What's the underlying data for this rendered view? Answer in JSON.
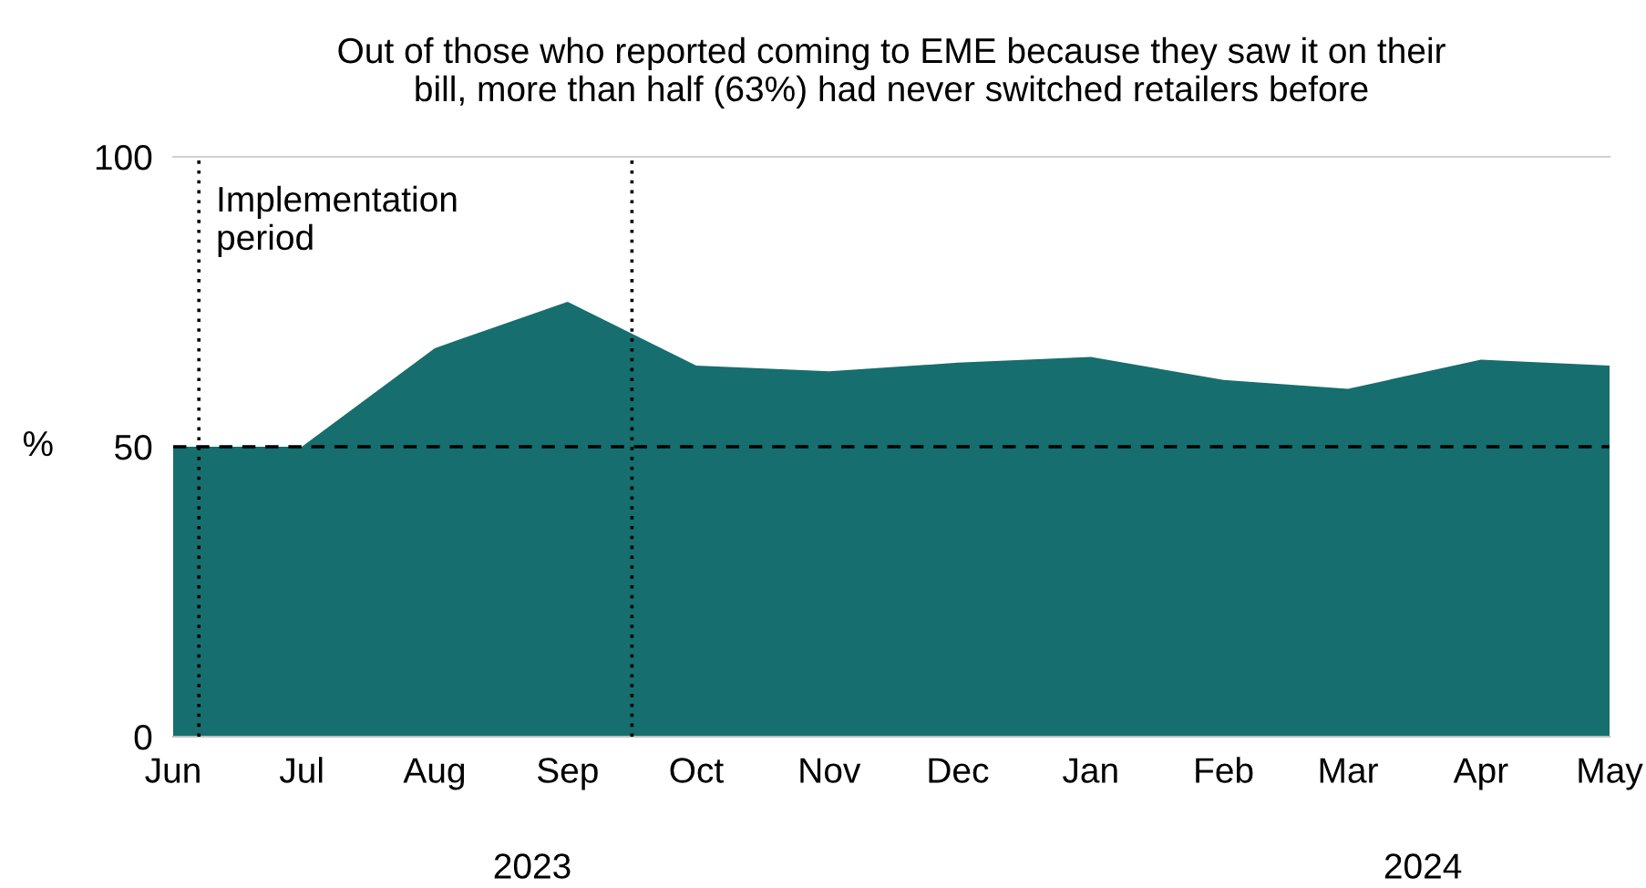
{
  "chart_data": {
    "type": "area",
    "title": "Out of those who reported coming to EME because they saw it on their\nbill, more than half (63%) had never switched retailers before",
    "ylabel": "%",
    "x": [
      "2023-06",
      "2023-07",
      "2023-08",
      "2023-09",
      "2023-10",
      "2023-11",
      "2023-12",
      "2024-01",
      "2024-02",
      "2024-03",
      "2024-04",
      "2024-05"
    ],
    "series": [
      {
        "color": "#176e6e",
        "values": [
          50,
          50,
          67,
          75,
          64,
          63,
          64.5,
          65.5,
          61.5,
          60,
          65,
          64
        ]
      }
    ],
    "xlim": [
      "2023-06",
      "2024-05"
    ],
    "xticks": [
      {
        "value": "2023-06",
        "label": "Jun"
      },
      {
        "value": "2023-07",
        "label": "Jul"
      },
      {
        "value": "2023-08",
        "label": "Aug"
      },
      {
        "value": "2023-09",
        "label": "Sep"
      },
      {
        "value": "2023-10",
        "label": "Oct"
      },
      {
        "value": "2023-11",
        "label": "Nov"
      },
      {
        "value": "2023-12",
        "label": "Dec"
      },
      {
        "value": "2024-01",
        "label": "Jan"
      },
      {
        "value": "2024-02",
        "label": "Feb"
      },
      {
        "value": "2024-03",
        "label": "Mar"
      },
      {
        "value": "2024-04",
        "label": "Apr"
      },
      {
        "value": "2024-05",
        "label": "May"
      }
    ],
    "ylim": [
      0,
      100
    ],
    "yticks": [
      0,
      50,
      100
    ],
    "grid": false,
    "ref_lines": [
      {
        "axis": "y",
        "value": 50,
        "color": "#000000",
        "line_style": "dashed"
      },
      {
        "axis": "x",
        "value": "2023-06-07",
        "color": "#000000",
        "line_style": "dotted"
      },
      {
        "axis": "x",
        "value": "2023-09-16",
        "color": "#000000",
        "line_style": "dotted",
        "label": "Implementation\nperiod"
      }
    ],
    "annotations": [
      "2023",
      "2024"
    ]
  }
}
